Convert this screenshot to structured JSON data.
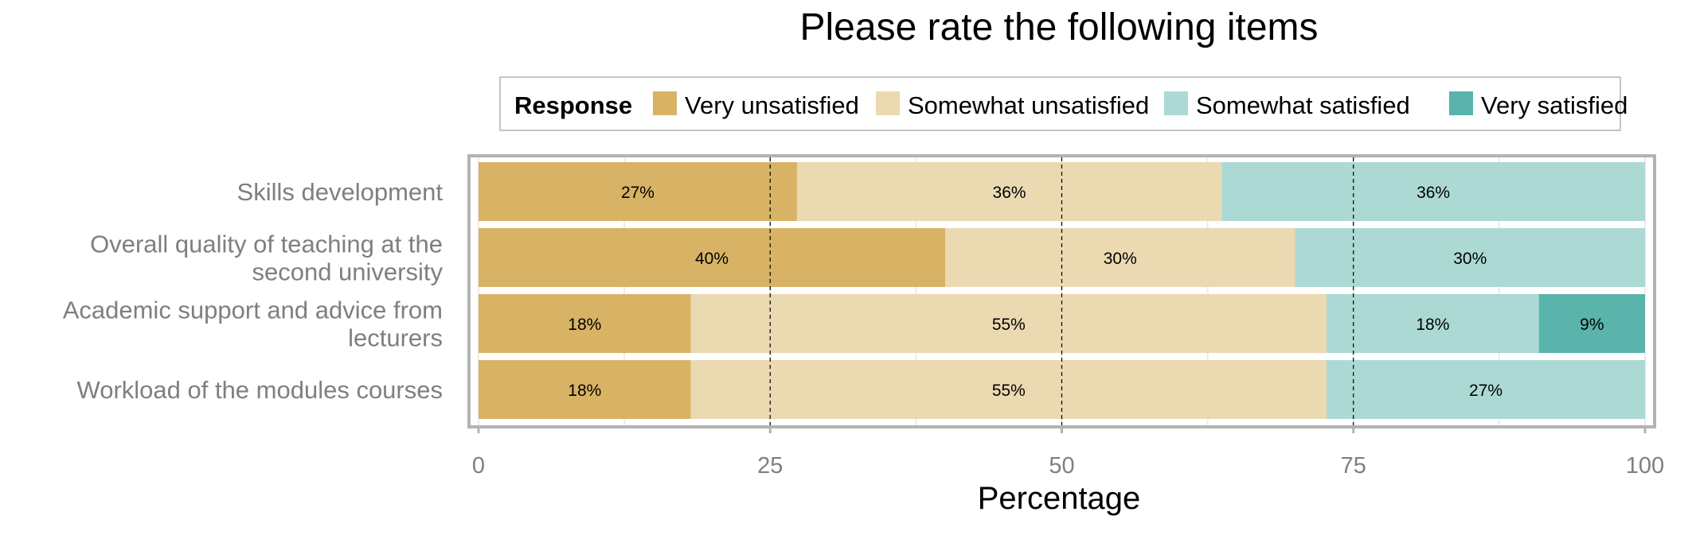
{
  "chart_data": {
    "type": "bar",
    "orientation": "horizontal",
    "stacked": true,
    "title": "Please rate the following items",
    "xlabel": "Percentage",
    "ylabel": "",
    "xlim": [
      0,
      100
    ],
    "xticks": [
      0,
      25,
      50,
      75,
      100
    ],
    "reference_lines": [
      25,
      50,
      75
    ],
    "grid": true,
    "legend": {
      "title": "Response",
      "position": "top",
      "entries": [
        "Very unsatisfied",
        "Somewhat unsatisfied",
        "Somewhat satisfied",
        "Very satisfied"
      ]
    },
    "categories": [
      "Skills development",
      "Overall quality of teaching at the second university",
      "Academic support and advice from lecturers",
      "Workload of the modules courses"
    ],
    "category_lines": [
      [
        "Skills development"
      ],
      [
        "Overall quality of teaching at the",
        "second university"
      ],
      [
        "Academic support and advice from",
        "lecturers"
      ],
      [
        "Workload of the modules courses"
      ]
    ],
    "series": [
      {
        "name": "Very unsatisfied",
        "color": "#d8b365",
        "values": [
          27.3,
          40,
          18.2,
          18.2
        ],
        "labels": [
          "27%",
          "40%",
          "18%",
          "18%"
        ]
      },
      {
        "name": "Somewhat unsatisfied",
        "color": "#ebd9b2",
        "values": [
          36.4,
          30,
          54.5,
          54.5
        ],
        "labels": [
          "36%",
          "30%",
          "55%",
          "55%"
        ]
      },
      {
        "name": "Somewhat satisfied",
        "color": "#acd9d4",
        "values": [
          36.3,
          30,
          18.2,
          27.3
        ],
        "labels": [
          "36%",
          "30%",
          "18%",
          "27%"
        ]
      },
      {
        "name": "Very satisfied",
        "color": "#5ab4ac",
        "values": [
          0,
          0,
          9.1,
          0
        ],
        "labels": [
          "",
          "",
          "9%",
          ""
        ]
      }
    ]
  }
}
